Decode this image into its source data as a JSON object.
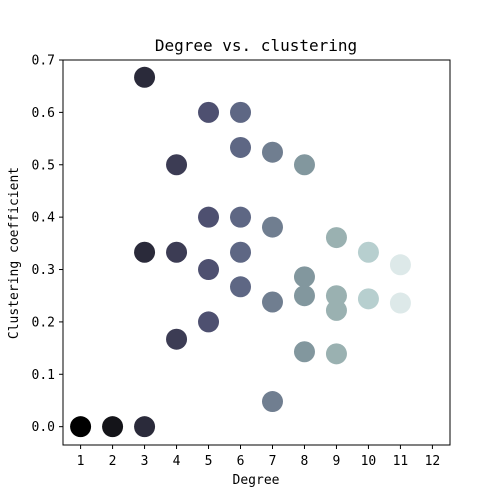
{
  "chart_data": {
    "type": "scatter",
    "title": "Degree vs. clustering",
    "xlabel": "Degree",
    "ylabel": "Clustering coefficient",
    "xlim": [
      0.45,
      12.55
    ],
    "ylim": [
      -0.035,
      0.7
    ],
    "xticks": [
      1,
      2,
      3,
      4,
      5,
      6,
      7,
      8,
      9,
      10,
      11,
      12
    ],
    "yticks": [
      0.0,
      0.1,
      0.2,
      0.3,
      0.4,
      0.5,
      0.6,
      0.7
    ],
    "ytick_labels": [
      "0.0",
      "0.1",
      "0.2",
      "0.3",
      "0.4",
      "0.5",
      "0.6",
      "0.7"
    ],
    "grid": false,
    "colormap": "bone",
    "color_by": "degree",
    "colors": {
      "1": "#000000",
      "2": "#141419",
      "3": "#2a2a3a",
      "4": "#3c3c54",
      "5": "#4e5070",
      "6": "#5e6784",
      "7": "#707e90",
      "8": "#82979e",
      "9": "#9ab1b1",
      "10": "#b7cfcf",
      "11": "#dde9e9"
    },
    "points": [
      {
        "x": 1,
        "y": 0.0
      },
      {
        "x": 2,
        "y": 0.0
      },
      {
        "x": 3,
        "y": 0.0
      },
      {
        "x": 3,
        "y": 0.333
      },
      {
        "x": 3,
        "y": 0.667
      },
      {
        "x": 4,
        "y": 0.5
      },
      {
        "x": 4,
        "y": 0.333
      },
      {
        "x": 4,
        "y": 0.167
      },
      {
        "x": 5,
        "y": 0.6
      },
      {
        "x": 5,
        "y": 0.4
      },
      {
        "x": 5,
        "y": 0.3
      },
      {
        "x": 5,
        "y": 0.2
      },
      {
        "x": 6,
        "y": 0.6
      },
      {
        "x": 6,
        "y": 0.533
      },
      {
        "x": 6,
        "y": 0.4
      },
      {
        "x": 6,
        "y": 0.333
      },
      {
        "x": 6,
        "y": 0.267
      },
      {
        "x": 7,
        "y": 0.524
      },
      {
        "x": 7,
        "y": 0.381
      },
      {
        "x": 7,
        "y": 0.238
      },
      {
        "x": 7,
        "y": 0.048
      },
      {
        "x": 8,
        "y": 0.5
      },
      {
        "x": 8,
        "y": 0.286
      },
      {
        "x": 8,
        "y": 0.25
      },
      {
        "x": 8,
        "y": 0.143
      },
      {
        "x": 9,
        "y": 0.361
      },
      {
        "x": 9,
        "y": 0.25
      },
      {
        "x": 9,
        "y": 0.222
      },
      {
        "x": 9,
        "y": 0.139
      },
      {
        "x": 10,
        "y": 0.333
      },
      {
        "x": 10,
        "y": 0.244
      },
      {
        "x": 11,
        "y": 0.309
      },
      {
        "x": 11,
        "y": 0.236
      }
    ]
  }
}
